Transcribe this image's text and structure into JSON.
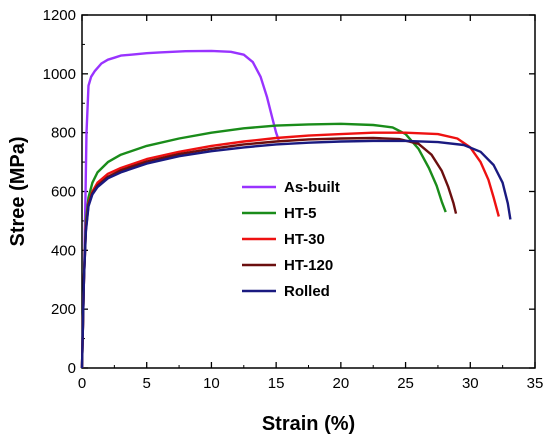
{
  "chart_data": {
    "type": "line",
    "xlabel": "Strain (%)",
    "ylabel": "Stree (MPa)",
    "xlim": [
      0,
      35
    ],
    "ylim": [
      0,
      1200
    ],
    "xticks": [
      0,
      5,
      10,
      15,
      20,
      25,
      30,
      35
    ],
    "yticks": [
      0,
      200,
      400,
      600,
      800,
      1000,
      1200
    ],
    "grid": false,
    "legend_position": "center",
    "series": [
      {
        "name": "As-built",
        "color": "#9933ff",
        "x": [
          0,
          0.2,
          0.35,
          0.5,
          0.7,
          1.0,
          1.5,
          2.0,
          2.5,
          3.0,
          4.0,
          5.0,
          6.0,
          8.0,
          10.0,
          11.5,
          12.5,
          13.2,
          13.8,
          14.3,
          14.7,
          15.0,
          15.2
        ],
        "y": [
          0,
          400,
          800,
          960,
          990,
          1010,
          1035,
          1048,
          1055,
          1062,
          1066,
          1070,
          1073,
          1077,
          1078,
          1075,
          1065,
          1040,
          990,
          920,
          850,
          800,
          775
        ]
      },
      {
        "name": "HT-5",
        "color": "#1a8c1a",
        "x": [
          0,
          0.15,
          0.3,
          0.5,
          0.8,
          1.2,
          2.0,
          3.0,
          5.0,
          7.5,
          10.0,
          12.5,
          15.0,
          17.5,
          20.0,
          22.5,
          24.0,
          25.0,
          26.0,
          26.8,
          27.4,
          27.8,
          28.1
        ],
        "y": [
          0,
          300,
          500,
          580,
          630,
          665,
          700,
          725,
          755,
          780,
          800,
          815,
          824,
          828,
          830,
          826,
          818,
          795,
          745,
          680,
          620,
          565,
          530
        ]
      },
      {
        "name": "HT-30",
        "color": "#ee1111",
        "x": [
          0,
          0.15,
          0.3,
          0.5,
          0.8,
          1.2,
          2.0,
          3.0,
          5.0,
          7.5,
          10.0,
          12.5,
          15.0,
          17.5,
          20.0,
          22.5,
          25.0,
          27.5,
          29.0,
          30.0,
          30.8,
          31.4,
          31.8,
          32.2
        ],
        "y": [
          0,
          300,
          480,
          560,
          600,
          630,
          660,
          680,
          710,
          735,
          755,
          770,
          782,
          790,
          795,
          800,
          800,
          795,
          780,
          750,
          700,
          640,
          580,
          515
        ]
      },
      {
        "name": "HT-120",
        "color": "#6b0f0f",
        "x": [
          0,
          0.15,
          0.3,
          0.5,
          0.8,
          1.2,
          2.0,
          3.0,
          5.0,
          7.5,
          10.0,
          12.5,
          15.0,
          17.5,
          20.0,
          22.5,
          24.5,
          26.0,
          27.0,
          27.8,
          28.3,
          28.7,
          28.9
        ],
        "y": [
          0,
          300,
          470,
          555,
          595,
          620,
          650,
          672,
          702,
          727,
          745,
          760,
          770,
          777,
          780,
          782,
          778,
          762,
          725,
          670,
          615,
          560,
          525
        ]
      },
      {
        "name": "Rolled",
        "color": "#1a1a80",
        "x": [
          0,
          0.15,
          0.3,
          0.5,
          0.8,
          1.2,
          2.0,
          3.0,
          5.0,
          7.5,
          10.0,
          12.5,
          15.0,
          17.5,
          20.0,
          22.5,
          25.0,
          27.5,
          29.5,
          30.8,
          31.8,
          32.5,
          32.9,
          33.1
        ],
        "y": [
          0,
          300,
          465,
          550,
          590,
          615,
          645,
          665,
          695,
          720,
          737,
          750,
          760,
          766,
          770,
          772,
          772,
          768,
          758,
          735,
          690,
          630,
          560,
          505
        ]
      }
    ]
  }
}
